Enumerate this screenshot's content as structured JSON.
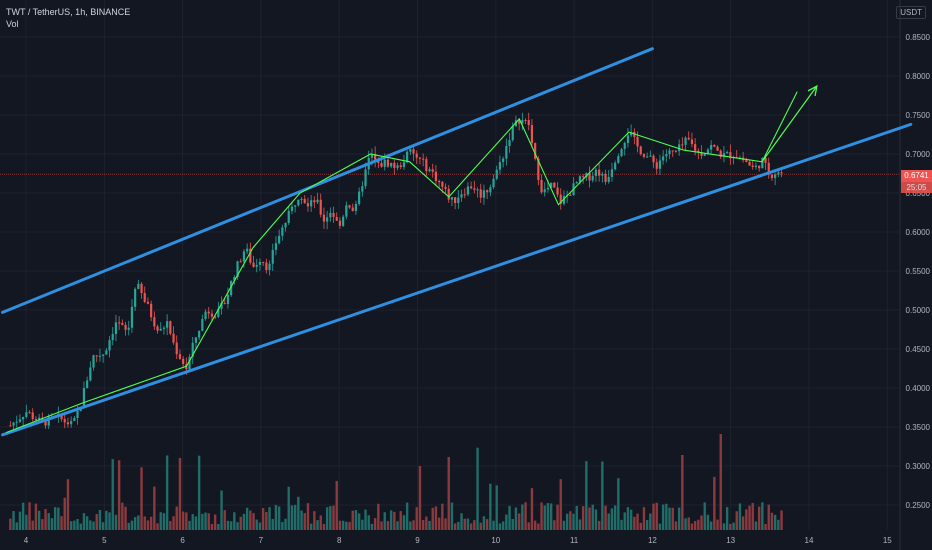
{
  "legend": {
    "title": "TWT / TetherUS, 1h, BINANCE",
    "vol": "Vol"
  },
  "currency": "USDT",
  "price_tag": {
    "price": "0.6741",
    "countdown": "25:05"
  },
  "colors": {
    "background": "#131722",
    "grid": "#1e222d",
    "axis_text": "#b2b5be",
    "up": "#26a69a",
    "down": "#ef5350",
    "vol_up": "#1f6e69",
    "vol_down": "#8b3a3e",
    "channel": "#2f8fe0",
    "zigzag": "#4cff50",
    "price_line": "#ef5350"
  },
  "chart_data": {
    "type": "candlestick",
    "title": "TWT / TetherUS, 1h, BINANCE",
    "x_ticks": [
      "4",
      "5",
      "6",
      "7",
      "8",
      "9",
      "10",
      "11",
      "12",
      "13",
      "14",
      "15"
    ],
    "y_ticks": [
      "0.8500",
      "0.8000",
      "0.7500",
      "0.7000",
      "0.6500",
      "0.6000",
      "0.5500",
      "0.5000",
      "0.4500",
      "0.4000",
      "0.3500",
      "0.3000",
      "0.2500"
    ],
    "ylim": [
      0.24,
      0.865
    ],
    "xlim": [
      3.7,
      15.3
    ],
    "last_price": 0.6741,
    "grid": true,
    "price_path": [
      [
        3.8,
        0.352
      ],
      [
        4.0,
        0.37
      ],
      [
        4.2,
        0.355
      ],
      [
        4.4,
        0.362
      ],
      [
        4.6,
        0.352
      ],
      [
        4.7,
        0.38
      ],
      [
        4.85,
        0.44
      ],
      [
        5.0,
        0.445
      ],
      [
        5.15,
        0.485
      ],
      [
        5.3,
        0.47
      ],
      [
        5.4,
        0.535
      ],
      [
        5.55,
        0.505
      ],
      [
        5.7,
        0.47
      ],
      [
        5.8,
        0.485
      ],
      [
        5.9,
        0.452
      ],
      [
        6.05,
        0.425
      ],
      [
        6.15,
        0.46
      ],
      [
        6.3,
        0.5
      ],
      [
        6.45,
        0.495
      ],
      [
        6.55,
        0.512
      ],
      [
        6.65,
        0.545
      ],
      [
        6.8,
        0.58
      ],
      [
        6.9,
        0.555
      ],
      [
        7.0,
        0.568
      ],
      [
        7.1,
        0.552
      ],
      [
        7.2,
        0.59
      ],
      [
        7.35,
        0.62
      ],
      [
        7.5,
        0.652
      ],
      [
        7.6,
        0.632
      ],
      [
        7.7,
        0.642
      ],
      [
        7.8,
        0.615
      ],
      [
        7.9,
        0.628
      ],
      [
        8.0,
        0.605
      ],
      [
        8.1,
        0.64
      ],
      [
        8.2,
        0.625
      ],
      [
        8.3,
        0.665
      ],
      [
        8.4,
        0.7
      ],
      [
        8.5,
        0.685
      ],
      [
        8.6,
        0.69
      ],
      [
        8.75,
        0.682
      ],
      [
        8.9,
        0.703
      ],
      [
        9.05,
        0.69
      ],
      [
        9.2,
        0.675
      ],
      [
        9.3,
        0.66
      ],
      [
        9.45,
        0.638
      ],
      [
        9.55,
        0.65
      ],
      [
        9.7,
        0.66
      ],
      [
        9.8,
        0.648
      ],
      [
        9.9,
        0.655
      ],
      [
        10.0,
        0.675
      ],
      [
        10.1,
        0.7
      ],
      [
        10.2,
        0.73
      ],
      [
        10.3,
        0.745
      ],
      [
        10.42,
        0.738
      ],
      [
        10.5,
        0.69
      ],
      [
        10.6,
        0.65
      ],
      [
        10.72,
        0.66
      ],
      [
        10.82,
        0.638
      ],
      [
        10.92,
        0.648
      ],
      [
        11.05,
        0.665
      ],
      [
        11.2,
        0.672
      ],
      [
        11.3,
        0.68
      ],
      [
        11.4,
        0.665
      ],
      [
        11.55,
        0.7
      ],
      [
        11.7,
        0.73
      ],
      [
        11.8,
        0.71
      ],
      [
        11.95,
        0.695
      ],
      [
        12.05,
        0.685
      ],
      [
        12.15,
        0.7
      ],
      [
        12.3,
        0.702
      ],
      [
        12.45,
        0.718
      ],
      [
        12.6,
        0.7
      ],
      [
        12.75,
        0.71
      ],
      [
        12.9,
        0.698
      ],
      [
        13.05,
        0.7
      ],
      [
        13.2,
        0.69
      ],
      [
        13.3,
        0.68
      ],
      [
        13.4,
        0.692
      ],
      [
        13.5,
        0.673
      ],
      [
        13.6,
        0.678
      ],
      [
        13.68,
        0.674
      ]
    ],
    "drawings": {
      "channel_upper": [
        [
          3.7,
          0.497
        ],
        [
          12.0,
          0.835
        ]
      ],
      "channel_lower": [
        [
          3.7,
          0.34
        ],
        [
          15.3,
          0.738
        ]
      ],
      "zigzag": [
        [
          3.75,
          0.343
        ],
        [
          4.7,
          0.38
        ],
        [
          6.05,
          0.428
        ],
        [
          6.9,
          0.58
        ],
        [
          7.5,
          0.65
        ],
        [
          8.4,
          0.7
        ],
        [
          8.9,
          0.69
        ],
        [
          9.4,
          0.645
        ],
        [
          10.3,
          0.745
        ],
        [
          10.8,
          0.635
        ],
        [
          11.7,
          0.728
        ],
        [
          12.4,
          0.705
        ],
        [
          13.4,
          0.69
        ],
        [
          13.85,
          0.78
        ]
      ],
      "arrow": [
        [
          13.4,
          0.69
        ],
        [
          14.1,
          0.787
        ]
      ]
    }
  }
}
